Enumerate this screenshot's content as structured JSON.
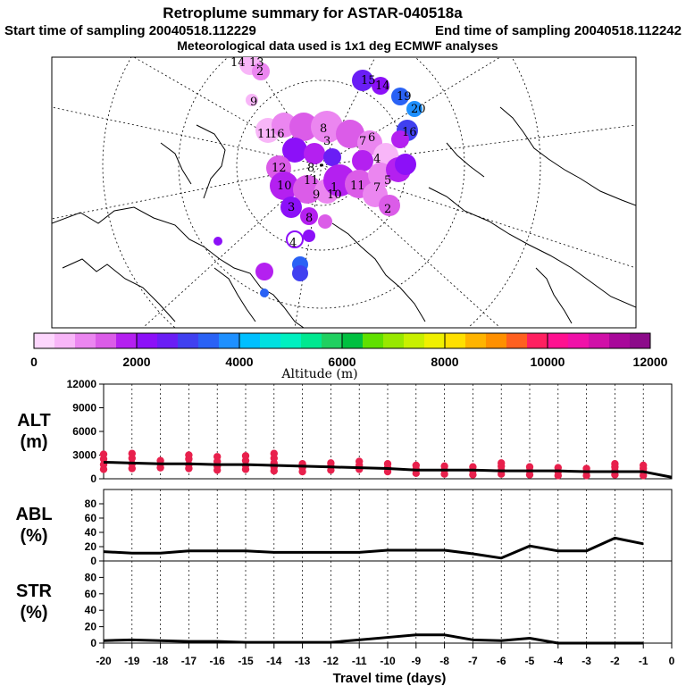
{
  "header": {
    "title": "Retroplume summary for ASTAR-040518a",
    "start": "Start time of sampling 20040518.112229",
    "end": "End time of sampling 20040518.112242",
    "met": "Meteorological data used is 1x1 deg ECMWF analyses"
  },
  "colorbar": {
    "colors": [
      "#fdd6fd",
      "#f8b6f8",
      "#eb86f0",
      "#db5ce8",
      "#b420f0",
      "#8c10f8",
      "#6a1ef5",
      "#4040f0",
      "#2a62f5",
      "#1e90ff",
      "#00bfff",
      "#00e0e0",
      "#00f0c0",
      "#00e890",
      "#20d060",
      "#00c040",
      "#60e000",
      "#98e800",
      "#c8f000",
      "#f0f000",
      "#ffe000",
      "#ffb400",
      "#ff9000",
      "#ff6020",
      "#ff2060",
      "#ff1090",
      "#f010a8",
      "#d010a8",
      "#a8089a",
      "#8c0a8a"
    ],
    "tick_labels": [
      "0",
      "2000",
      "4000",
      "6000",
      "8000",
      "10000",
      "12000"
    ],
    "label": "Altitude (m)"
  },
  "map_labels": [
    "14",
    "13",
    "2",
    "15",
    "14",
    "19",
    "20",
    "16",
    "16",
    "11",
    "9",
    "8",
    "7",
    "6",
    "3",
    "4",
    "5",
    "12",
    "10",
    "11",
    "1",
    "9",
    "10",
    "11",
    "8",
    "3",
    "8",
    "2",
    "7",
    "4"
  ],
  "chart_data": [
    {
      "type": "line",
      "name": "ALT",
      "ylabel": "ALT (m)",
      "ylabel_lines": [
        "ALT",
        "(m)"
      ],
      "ylim": [
        0,
        12000
      ],
      "yticks": [
        "12000",
        "9000",
        "6000",
        "3000",
        "0"
      ],
      "x": [
        -20,
        -19,
        -18,
        -17,
        -16,
        -15,
        -14,
        -13,
        -12,
        -11,
        -10,
        -9,
        -8,
        -7,
        -6,
        -5,
        -4,
        -3,
        -2,
        -1,
        0
      ],
      "values": [
        2100,
        2000,
        1900,
        1900,
        1800,
        1800,
        1700,
        1600,
        1500,
        1400,
        1300,
        1100,
        1100,
        1100,
        1000,
        1000,
        1000,
        900,
        900,
        900,
        200
      ],
      "scatter_color": "#e8204c",
      "scatter": [
        {
          "x": -20,
          "ys": [
            1200,
            1800,
            2500,
            3100
          ]
        },
        {
          "x": -19,
          "ys": [
            1300,
            1900,
            2600,
            3200
          ]
        },
        {
          "x": -18,
          "ys": [
            1400,
            1900,
            2300
          ]
        },
        {
          "x": -17,
          "ys": [
            1300,
            1800,
            2500,
            3000
          ]
        },
        {
          "x": -16,
          "ys": [
            1100,
            1600,
            2200,
            2800
          ]
        },
        {
          "x": -15,
          "ys": [
            1200,
            1700,
            2300,
            2900
          ]
        },
        {
          "x": -14,
          "ys": [
            1000,
            1500,
            2000,
            2600,
            3200
          ]
        },
        {
          "x": -13,
          "ys": [
            900,
            1400,
            1900
          ]
        },
        {
          "x": -12,
          "ys": [
            1100,
            1600,
            2000
          ]
        },
        {
          "x": -11,
          "ys": [
            1200,
            1700,
            2200
          ]
        },
        {
          "x": -10,
          "ys": [
            900,
            1400,
            1900
          ]
        },
        {
          "x": -9,
          "ys": [
            700,
            1200,
            1700
          ]
        },
        {
          "x": -8,
          "ys": [
            600,
            1100,
            1600
          ]
        },
        {
          "x": -7,
          "ys": [
            500,
            1000,
            1500
          ]
        },
        {
          "x": -6,
          "ys": [
            600,
            1100,
            1600,
            2000
          ]
        },
        {
          "x": -5,
          "ys": [
            500,
            1000,
            1500
          ]
        },
        {
          "x": -4,
          "ys": [
            400,
            900,
            1400
          ]
        },
        {
          "x": -3,
          "ys": [
            400,
            900,
            1300
          ]
        },
        {
          "x": -2,
          "ys": [
            500,
            1000,
            1500,
            1900
          ]
        },
        {
          "x": -1,
          "ys": [
            400,
            900,
            1300,
            1700
          ]
        }
      ]
    },
    {
      "type": "line",
      "name": "ABL",
      "ylabel": "ABL (%)",
      "ylabel_lines": [
        "ABL",
        "(%)"
      ],
      "ylim": [
        0,
        100
      ],
      "yticks": [
        "80",
        "60",
        "40",
        "20",
        "0"
      ],
      "x": [
        -20,
        -19,
        -18,
        -17,
        -16,
        -15,
        -14,
        -13,
        -12,
        -11,
        -10,
        -9,
        -8,
        -7,
        -6,
        -5,
        -4,
        -3,
        -2,
        -1
      ],
      "values": [
        13,
        11,
        11,
        14,
        14,
        14,
        12,
        12,
        12,
        12,
        15,
        15,
        15,
        10,
        4,
        21,
        14,
        14,
        32,
        24
      ]
    },
    {
      "type": "line",
      "name": "STR",
      "ylabel": "STR (%)",
      "ylabel_lines": [
        "STR",
        "(%)"
      ],
      "ylim": [
        0,
        100
      ],
      "yticks": [
        "80",
        "60",
        "40",
        "20",
        "0"
      ],
      "x": [
        -20,
        -19,
        -18,
        -17,
        -16,
        -15,
        -14,
        -13,
        -12,
        -11,
        -10,
        -9,
        -8,
        -7,
        -6,
        -5,
        -4,
        -3,
        -2,
        -1
      ],
      "values": [
        3,
        4,
        3,
        2,
        2,
        1,
        1,
        1,
        1,
        4,
        7,
        10,
        10,
        4,
        3,
        6,
        0,
        0,
        0,
        0
      ]
    }
  ],
  "x_axis": {
    "tick_labels": [
      "-20",
      "-19",
      "-18",
      "-17",
      "-16",
      "-15",
      "-14",
      "-13",
      "-12",
      "-11",
      "-10",
      "-9",
      "-8",
      "-7",
      "-6",
      "-5",
      "-4",
      "-3",
      "-2",
      "-1",
      "0"
    ],
    "label": "Travel time (days)"
  }
}
